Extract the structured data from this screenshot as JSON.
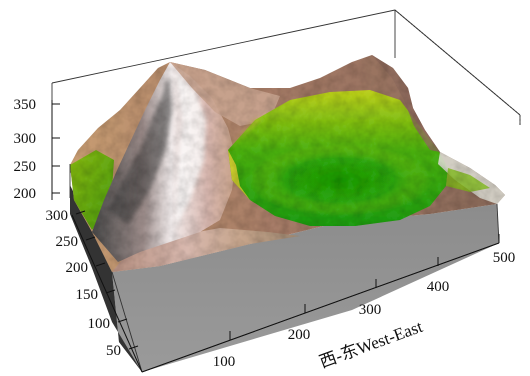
{
  "chart_data": {
    "type": "surface",
    "title": "",
    "xlabel": "西-东West-East",
    "ylabel": "",
    "zlabel": "",
    "x_ticks": [
      "100",
      "200",
      "300",
      "400",
      "500"
    ],
    "y_ticks": [
      "50",
      "100",
      "150",
      "200",
      "250",
      "300"
    ],
    "z_ticks": [
      "200",
      "250",
      "300",
      "350"
    ],
    "xlim": [
      0,
      520
    ],
    "ylim": [
      0,
      340
    ],
    "zlim": [
      150,
      370
    ],
    "features": [
      {
        "type": "peak",
        "x": 170,
        "y": 240,
        "z": 360
      },
      {
        "type": "basin",
        "x": 330,
        "y": 140,
        "z": 200
      }
    ],
    "colorscale": [
      "#1e9e12",
      "#72ba12",
      "#d8d826",
      "#c89650",
      "#a9766a",
      "#e6d0ce",
      "#ffffff"
    ],
    "grid": false
  }
}
